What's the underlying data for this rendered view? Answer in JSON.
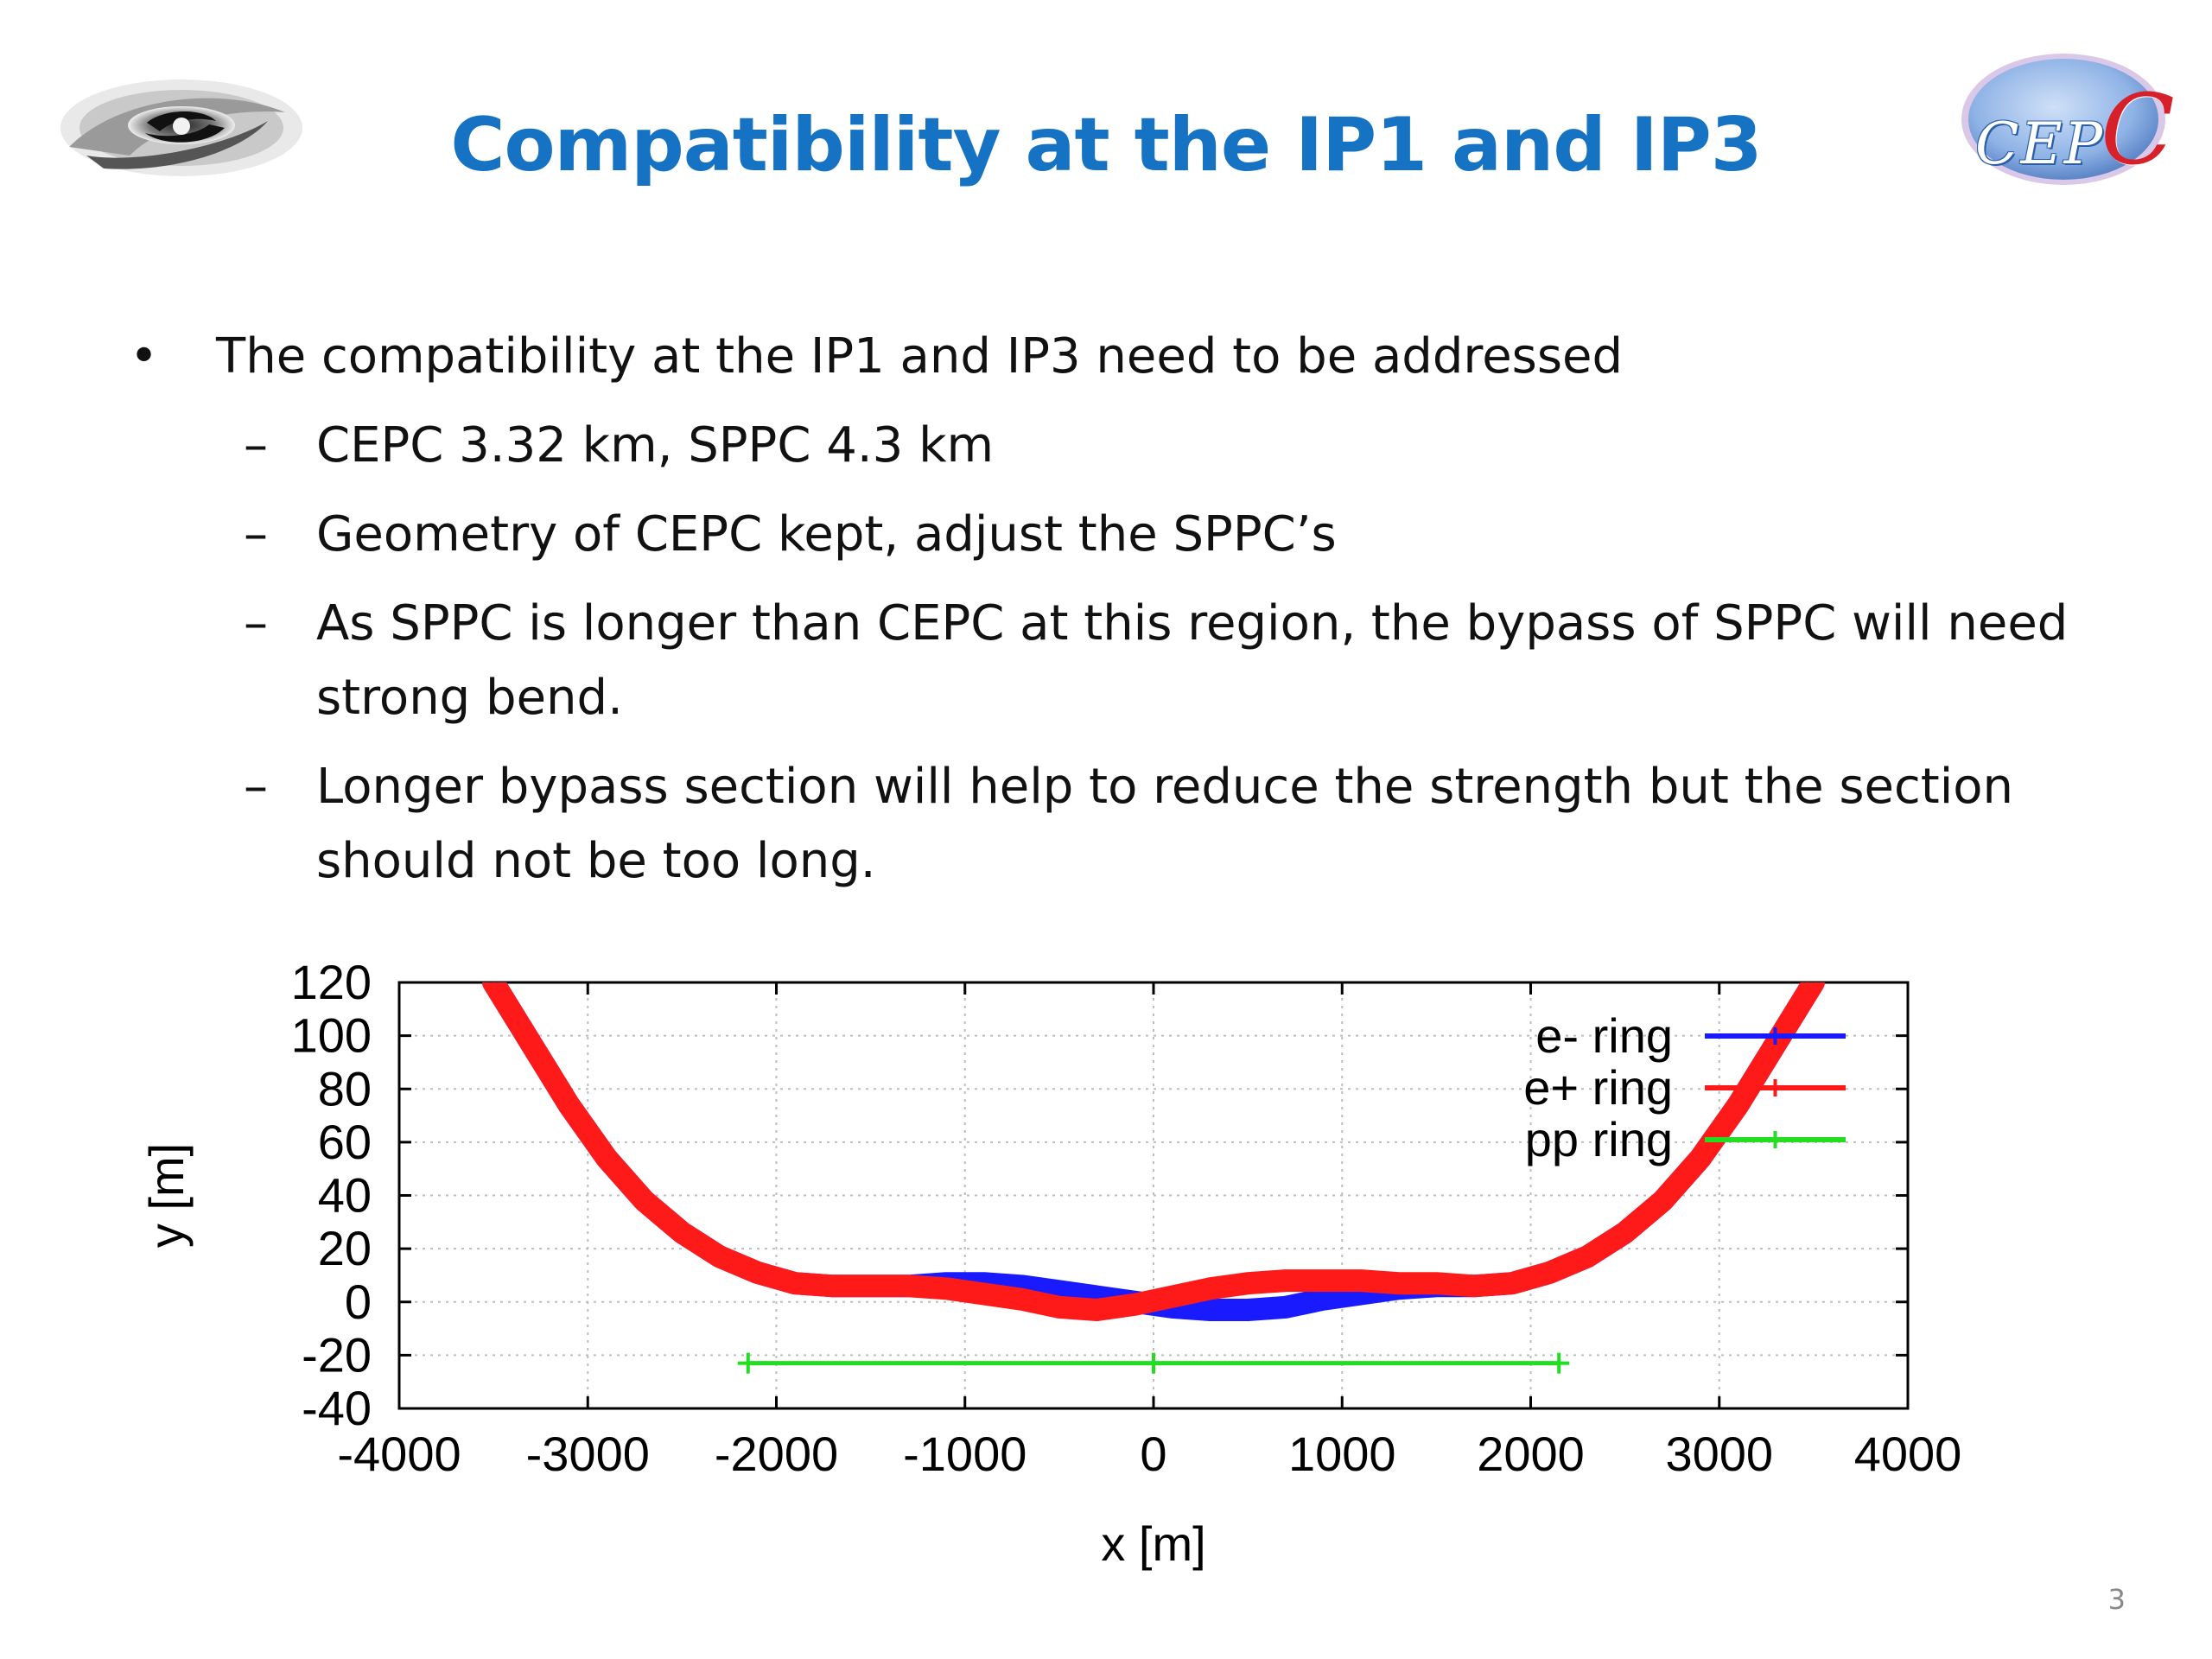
{
  "slide": {
    "title": "Compatibility at the IP1 and IP3",
    "page_number": "3",
    "logo_right": {
      "text": "CEP",
      "accent": "C"
    }
  },
  "bullets": [
    {
      "text": "The compatibility at the IP1 and IP3 need to be addressed",
      "sub": [
        "CEPC  3.32 km, SPPC 4.3 km",
        "Geometry of CEPC kept, adjust the SPPC’s",
        "As SPPC is longer than CEPC at this region, the bypass of SPPC will need strong bend.",
        "Longer bypass section will help to reduce the strength but the section should not be too long."
      ]
    }
  ],
  "chart_data": {
    "type": "line",
    "xlabel": "x [m]",
    "ylabel": "y [m]",
    "xlim": [
      -4000,
      4000
    ],
    "ylim": [
      -40,
      120
    ],
    "xticks": [
      -4000,
      -3000,
      -2000,
      -1000,
      0,
      1000,
      2000,
      3000,
      4000
    ],
    "yticks": [
      -40,
      -20,
      0,
      20,
      40,
      60,
      80,
      100,
      120
    ],
    "grid": true,
    "legend_position": "top-right",
    "series": [
      {
        "name": "e- ring",
        "color": "#1a1aff",
        "points": [
          [
            -3500,
            120
          ],
          [
            -3300,
            97
          ],
          [
            -3100,
            74
          ],
          [
            -2900,
            54
          ],
          [
            -2700,
            38
          ],
          [
            -2500,
            26
          ],
          [
            -2300,
            17
          ],
          [
            -2100,
            11
          ],
          [
            -1900,
            7
          ],
          [
            -1700,
            6
          ],
          [
            -1500,
            6
          ],
          [
            -1300,
            6
          ],
          [
            -1100,
            7
          ],
          [
            -900,
            7
          ],
          [
            -700,
            6
          ],
          [
            -500,
            4
          ],
          [
            -300,
            2
          ],
          [
            -100,
            0
          ],
          [
            100,
            -2
          ],
          [
            300,
            -3
          ],
          [
            500,
            -3
          ],
          [
            700,
            -2
          ],
          [
            900,
            1
          ],
          [
            1100,
            3
          ],
          [
            1300,
            5
          ],
          [
            1500,
            6
          ],
          [
            1700,
            6
          ],
          [
            1900,
            7
          ],
          [
            2100,
            11
          ],
          [
            2300,
            17
          ],
          [
            2500,
            26
          ],
          [
            2700,
            38
          ],
          [
            2900,
            54
          ],
          [
            3100,
            74
          ],
          [
            3300,
            97
          ],
          [
            3500,
            120
          ]
        ]
      },
      {
        "name": "e+ ring",
        "color": "#ff1a1a",
        "points": [
          [
            -3500,
            120
          ],
          [
            -3300,
            97
          ],
          [
            -3100,
            74
          ],
          [
            -2900,
            54
          ],
          [
            -2700,
            38
          ],
          [
            -2500,
            26
          ],
          [
            -2300,
            17
          ],
          [
            -2100,
            11
          ],
          [
            -1900,
            7
          ],
          [
            -1700,
            6
          ],
          [
            -1500,
            6
          ],
          [
            -1300,
            6
          ],
          [
            -1100,
            5
          ],
          [
            -900,
            3
          ],
          [
            -700,
            1
          ],
          [
            -500,
            -2
          ],
          [
            -300,
            -3
          ],
          [
            -100,
            -1
          ],
          [
            100,
            2
          ],
          [
            300,
            5
          ],
          [
            500,
            7
          ],
          [
            700,
            8
          ],
          [
            900,
            8
          ],
          [
            1100,
            8
          ],
          [
            1300,
            7
          ],
          [
            1500,
            7
          ],
          [
            1700,
            6
          ],
          [
            1900,
            7
          ],
          [
            2100,
            11
          ],
          [
            2300,
            17
          ],
          [
            2500,
            26
          ],
          [
            2700,
            38
          ],
          [
            2900,
            54
          ],
          [
            3100,
            74
          ],
          [
            3300,
            97
          ],
          [
            3500,
            120
          ]
        ]
      },
      {
        "name": "pp ring",
        "color": "#22dd22",
        "points": [
          [
            -2150,
            -23
          ],
          [
            0,
            -23
          ],
          [
            2150,
            -23
          ]
        ]
      }
    ]
  }
}
